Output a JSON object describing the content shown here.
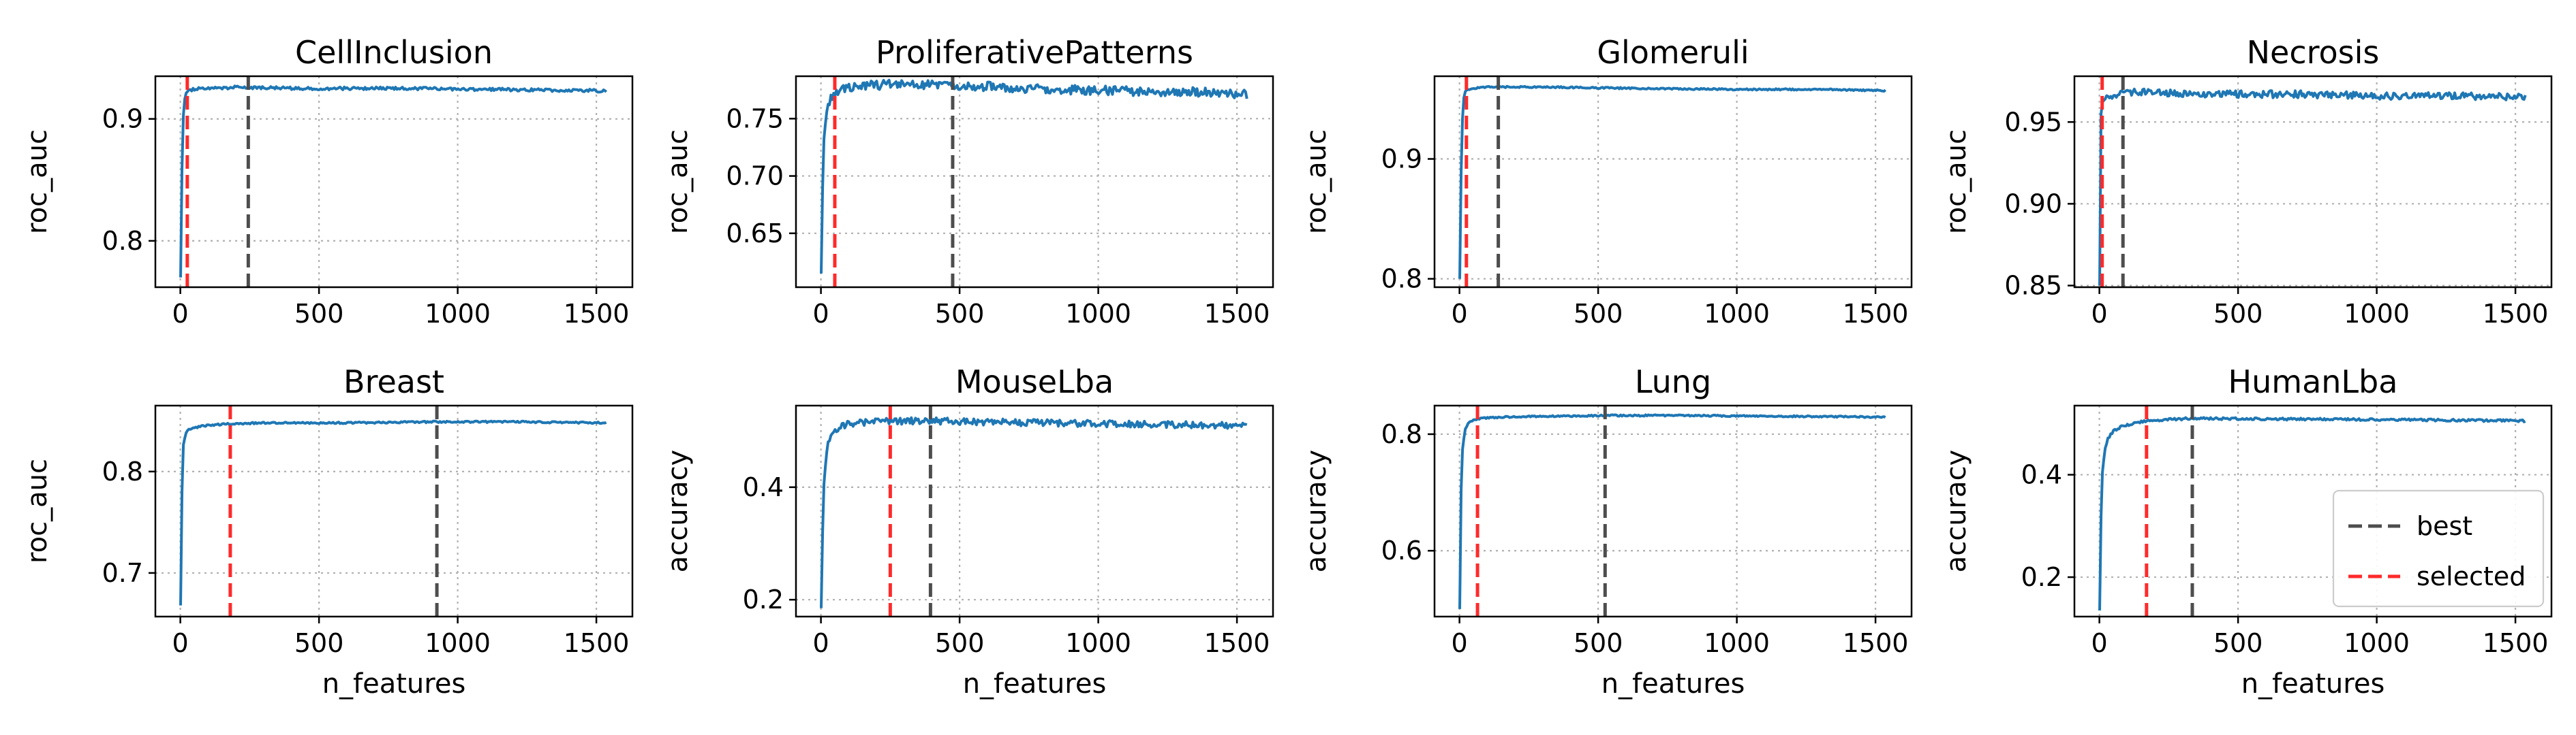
{
  "figure": {
    "colors": {
      "series": "#1f77b4",
      "best": "#4d4d4d",
      "selected": "#ff2a2a",
      "grid": "#b0b0b0"
    },
    "legend": {
      "placement": "lower-right",
      "panel": 7,
      "entries": [
        "best",
        "selected"
      ]
    }
  },
  "chart_data": [
    {
      "type": "line",
      "title": "CellInclusion",
      "ylabel": "roc_auc",
      "xlabel": "",
      "xlim": [
        -90,
        1630
      ],
      "ylim": [
        0.762,
        0.935
      ],
      "xticks": [
        0,
        500,
        1000,
        1500
      ],
      "yticks": [
        0.8,
        0.9
      ],
      "ytick_labels": [
        "0.8",
        "0.9"
      ],
      "best": 245,
      "selected": 25,
      "curve": {
        "x": [
          1,
          5,
          10,
          15,
          20,
          30,
          40,
          60,
          100,
          200,
          400,
          800,
          1200,
          1536
        ],
        "y": [
          0.77,
          0.85,
          0.9,
          0.915,
          0.921,
          0.923,
          0.924,
          0.925,
          0.925,
          0.926,
          0.925,
          0.925,
          0.924,
          0.923
        ],
        "noise": 0.0012
      }
    },
    {
      "type": "line",
      "title": "ProliferativePatterns",
      "ylabel": "roc_auc",
      "xlabel": "",
      "xlim": [
        -90,
        1630
      ],
      "ylim": [
        0.603,
        0.787
      ],
      "xticks": [
        0,
        500,
        1000,
        1500
      ],
      "yticks": [
        0.65,
        0.7,
        0.75
      ],
      "ytick_labels": [
        "0.65",
        "0.70",
        "0.75"
      ],
      "best": 475,
      "selected": 50,
      "curve": {
        "x": [
          1,
          5,
          10,
          20,
          30,
          50,
          80,
          150,
          300,
          500,
          800,
          1100,
          1400,
          1536
        ],
        "y": [
          0.615,
          0.68,
          0.73,
          0.755,
          0.765,
          0.773,
          0.777,
          0.779,
          0.78,
          0.779,
          0.776,
          0.774,
          0.773,
          0.771
        ],
        "noise": 0.004
      }
    },
    {
      "type": "line",
      "title": "Glomeruli",
      "ylabel": "roc_auc",
      "xlabel": "",
      "xlim": [
        -90,
        1630
      ],
      "ylim": [
        0.793,
        0.969
      ],
      "xticks": [
        0,
        500,
        1000,
        1500
      ],
      "yticks": [
        0.8,
        0.9
      ],
      "ytick_labels": [
        "0.8",
        "0.9"
      ],
      "best": 140,
      "selected": 25,
      "curve": {
        "x": [
          1,
          5,
          10,
          15,
          20,
          30,
          50,
          100,
          140,
          300,
          600,
          1000,
          1300,
          1536
        ],
        "y": [
          0.8,
          0.88,
          0.93,
          0.95,
          0.956,
          0.958,
          0.959,
          0.96,
          0.96,
          0.96,
          0.959,
          0.958,
          0.958,
          0.957
        ],
        "noise": 0.0006
      }
    },
    {
      "type": "line",
      "title": "Necrosis",
      "ylabel": "roc_auc",
      "xlabel": "",
      "xlim": [
        -90,
        1630
      ],
      "ylim": [
        0.849,
        0.978
      ],
      "xticks": [
        0,
        500,
        1000,
        1500
      ],
      "yticks": [
        0.85,
        0.9,
        0.95
      ],
      "ytick_labels": [
        "0.85",
        "0.90",
        "0.95"
      ],
      "best": 85,
      "selected": 10,
      "curve": {
        "x": [
          1,
          3,
          6,
          10,
          20,
          40,
          85,
          200,
          400,
          700,
          1000,
          1300,
          1536
        ],
        "y": [
          0.85,
          0.93,
          0.955,
          0.962,
          0.964,
          0.966,
          0.968,
          0.968,
          0.967,
          0.967,
          0.966,
          0.966,
          0.965
        ],
        "noise": 0.0022
      }
    },
    {
      "type": "line",
      "title": "Breast",
      "ylabel": "roc_auc",
      "xlabel": "n_features",
      "xlim": [
        -90,
        1630
      ],
      "ylim": [
        0.657,
        0.865
      ],
      "xticks": [
        0,
        500,
        1000,
        1500
      ],
      "yticks": [
        0.7,
        0.8
      ],
      "ytick_labels": [
        "0.7",
        "0.8"
      ],
      "best": 925,
      "selected": 180,
      "curve": {
        "x": [
          1,
          5,
          10,
          20,
          30,
          50,
          80,
          120,
          180,
          300,
          600,
          925,
          1200,
          1536
        ],
        "y": [
          0.668,
          0.77,
          0.825,
          0.838,
          0.841,
          0.843,
          0.845,
          0.846,
          0.847,
          0.848,
          0.848,
          0.849,
          0.849,
          0.848
        ],
        "noise": 0.0008
      }
    },
    {
      "type": "line",
      "title": "MouseLba",
      "ylabel": "accuracy",
      "xlabel": "n_features",
      "xlim": [
        -90,
        1630
      ],
      "ylim": [
        0.17,
        0.545
      ],
      "xticks": [
        0,
        500,
        1000,
        1500
      ],
      "yticks": [
        0.2,
        0.4
      ],
      "ytick_labels": [
        "0.2",
        "0.4"
      ],
      "best": 395,
      "selected": 250,
      "curve": {
        "x": [
          1,
          5,
          10,
          20,
          30,
          50,
          70,
          100,
          150,
          250,
          395,
          700,
          1000,
          1300,
          1536
        ],
        "y": [
          0.185,
          0.3,
          0.4,
          0.46,
          0.485,
          0.5,
          0.508,
          0.512,
          0.515,
          0.517,
          0.518,
          0.515,
          0.513,
          0.511,
          0.51
        ],
        "noise": 0.006
      }
    },
    {
      "type": "line",
      "title": "Lung",
      "ylabel": "accuracy",
      "xlabel": "n_features",
      "xlim": [
        -90,
        1630
      ],
      "ylim": [
        0.487,
        0.849
      ],
      "xticks": [
        0,
        500,
        1000,
        1500
      ],
      "yticks": [
        0.6,
        0.8
      ],
      "ytick_labels": [
        "0.6",
        "0.8"
      ],
      "best": 525,
      "selected": 65,
      "curve": {
        "x": [
          1,
          5,
          10,
          20,
          30,
          50,
          65,
          100,
          200,
          525,
          800,
          1100,
          1400,
          1536
        ],
        "y": [
          0.5,
          0.69,
          0.77,
          0.808,
          0.818,
          0.824,
          0.826,
          0.828,
          0.83,
          0.832,
          0.832,
          0.831,
          0.83,
          0.829
        ],
        "noise": 0.0012
      }
    },
    {
      "type": "line",
      "title": "HumanLba",
      "ylabel": "accuracy",
      "xlabel": "n_features",
      "xlim": [
        -90,
        1630
      ],
      "ylim": [
        0.123,
        0.535
      ],
      "xticks": [
        0,
        500,
        1000,
        1500
      ],
      "yticks": [
        0.2,
        0.4
      ],
      "ytick_labels": [
        "0.2",
        "0.4"
      ],
      "best": 335,
      "selected": 170,
      "legend": [
        "best",
        "selected"
      ],
      "curve": {
        "x": [
          1,
          5,
          10,
          20,
          30,
          50,
          80,
          120,
          170,
          250,
          335,
          600,
          900,
          1200,
          1536
        ],
        "y": [
          0.135,
          0.3,
          0.4,
          0.45,
          0.47,
          0.485,
          0.494,
          0.5,
          0.505,
          0.508,
          0.51,
          0.509,
          0.508,
          0.507,
          0.505
        ],
        "noise": 0.0022
      }
    }
  ]
}
